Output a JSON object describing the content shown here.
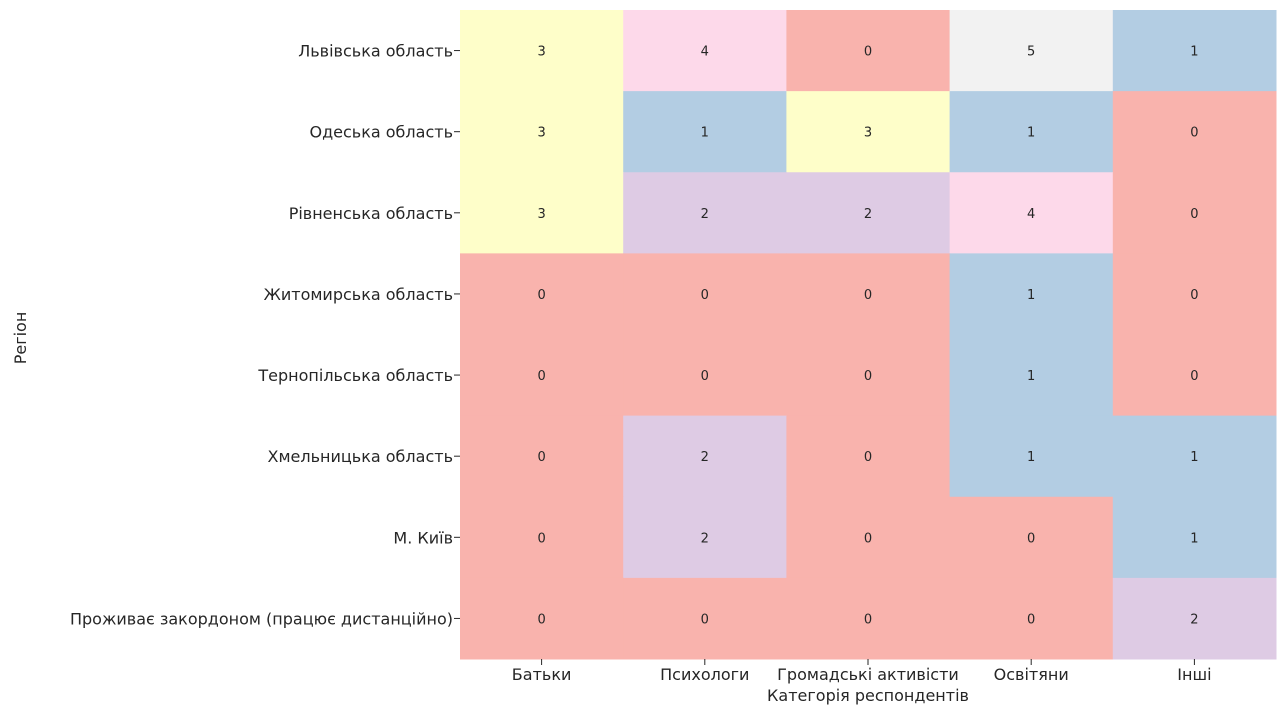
{
  "chart_data": {
    "type": "heatmap",
    "title": "",
    "xlabel": "Категорія респондентів",
    "ylabel": "Регіон",
    "x_categories": [
      "Батьки",
      "Психологи",
      "Громадські активісти",
      "Освітяни",
      "Інші"
    ],
    "y_categories": [
      "Львівська область",
      "Одеська область",
      "Рівненська область",
      "Житомирська область",
      "Тернопільська область",
      "Хмельницька область",
      "М. Київ",
      "Проживає закордоном (працює дистанційно)"
    ],
    "values": [
      [
        3,
        4,
        0,
        5,
        1
      ],
      [
        3,
        1,
        3,
        1,
        0
      ],
      [
        3,
        2,
        2,
        4,
        0
      ],
      [
        0,
        0,
        0,
        1,
        0
      ],
      [
        0,
        0,
        0,
        1,
        0
      ],
      [
        0,
        2,
        0,
        1,
        1
      ],
      [
        0,
        2,
        0,
        0,
        1
      ],
      [
        0,
        0,
        0,
        0,
        2
      ]
    ],
    "color_map": {
      "0": "#f9b3ad",
      "1": "#b3cde3",
      "2": "#decbe4",
      "3": "#fefec9",
      "4": "#fdd9ea",
      "5": "#f2f2f2"
    },
    "colorbar": false,
    "grid": false
  }
}
